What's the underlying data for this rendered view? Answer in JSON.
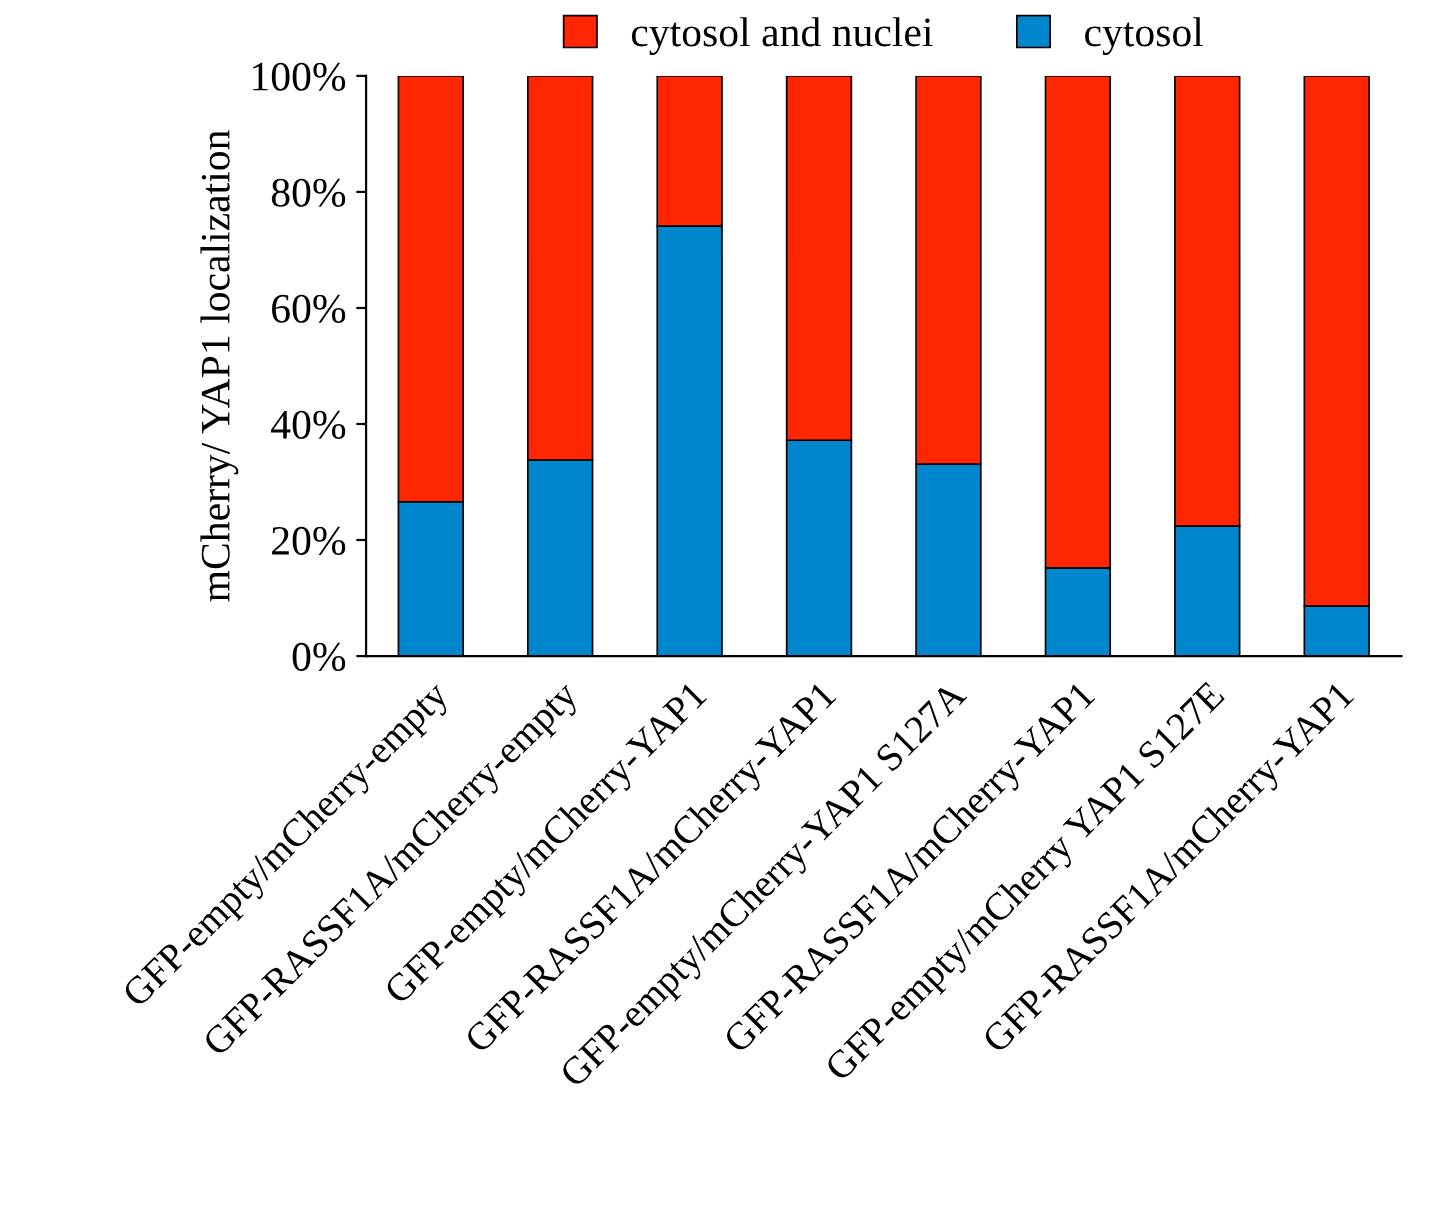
{
  "chart_data": {
    "type": "bar",
    "stacked": true,
    "ylabel": "mCherry/ YAP1 localization",
    "categories": [
      "GFP-empty/mCherry-empty",
      "GFP-RASSF1A/mCherry-empty",
      "GFP-empty/mCherry-YAP1",
      "GFP-RASSF1A/mCherry-YAP1",
      "GFP-empty/mCherry-YAP1 S127A",
      "GFP-RASSF1A/mCherry-YAP1",
      "GFP-empty/mCherry YAP1 S127E",
      "GFP-RASSF1A/mCherry-YAP1"
    ],
    "series": [
      {
        "name": "cytosol",
        "color": "#0086cc",
        "values": [
          26.6,
          33.8,
          74.1,
          37.2,
          33.1,
          15.2,
          22.4,
          8.6
        ]
      },
      {
        "name": "cytosol and nuclei",
        "color": "#ff2600",
        "values": [
          73.4,
          66.2,
          25.9,
          62.8,
          66.9,
          84.8,
          77.6,
          91.4
        ]
      }
    ],
    "ylim": [
      0,
      100
    ],
    "yticks": [
      {
        "value": 0,
        "label": "0%"
      },
      {
        "value": 20,
        "label": "20%"
      },
      {
        "value": 40,
        "label": "40%"
      },
      {
        "value": 60,
        "label": "60%"
      },
      {
        "value": 80,
        "label": "80%"
      },
      {
        "value": 100,
        "label": "100%"
      }
    ],
    "legend": "top",
    "grid": false
  }
}
